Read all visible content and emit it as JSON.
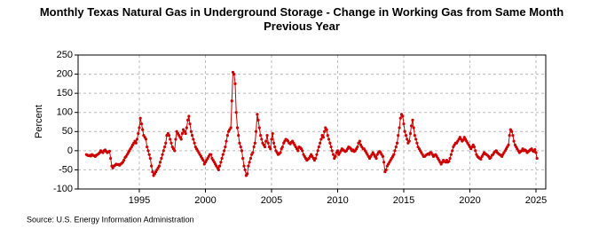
{
  "chart_data": {
    "type": "line",
    "title": "Monthly Texas Natural Gas in Underground Storage - Change in Working Gas from Same Month Previous Year",
    "y_label": "Percent",
    "source": "Source: U.S. Energy Information Administration",
    "xlim": [
      1990.37,
      2025.74
    ],
    "xticks": [
      1995,
      2000,
      2005,
      2010,
      2015,
      2020,
      2025
    ],
    "ylim": [
      -100,
      250
    ],
    "yticks": [
      -100,
      -50,
      0,
      50,
      100,
      150,
      200,
      250
    ],
    "grid": true,
    "x": [
      1991,
      1991.08,
      1991.17,
      1991.25,
      1991.33,
      1991.42,
      1991.5,
      1991.58,
      1991.67,
      1991.75,
      1991.83,
      1991.92,
      1992,
      1992.08,
      1992.17,
      1992.25,
      1992.33,
      1992.42,
      1992.5,
      1992.58,
      1992.67,
      1992.75,
      1992.83,
      1992.92,
      1993,
      1993.08,
      1993.17,
      1993.25,
      1993.33,
      1993.42,
      1993.5,
      1993.58,
      1993.67,
      1993.75,
      1993.83,
      1993.92,
      1994,
      1994.08,
      1994.17,
      1994.25,
      1994.33,
      1994.42,
      1994.5,
      1994.58,
      1994.67,
      1994.75,
      1994.83,
      1994.92,
      1995,
      1995.08,
      1995.17,
      1995.25,
      1995.33,
      1995.42,
      1995.5,
      1995.58,
      1995.67,
      1995.75,
      1995.83,
      1995.92,
      1996,
      1996.08,
      1996.17,
      1996.25,
      1996.33,
      1996.42,
      1996.5,
      1996.58,
      1996.67,
      1996.75,
      1996.83,
      1996.92,
      1997,
      1997.08,
      1997.17,
      1997.25,
      1997.33,
      1997.42,
      1997.5,
      1997.58,
      1997.67,
      1997.75,
      1997.83,
      1997.92,
      1998,
      1998.08,
      1998.17,
      1998.25,
      1998.33,
      1998.42,
      1998.5,
      1998.58,
      1998.67,
      1998.75,
      1998.83,
      1998.92,
      1999,
      1999.08,
      1999.17,
      1999.25,
      1999.33,
      1999.42,
      1999.5,
      1999.58,
      1999.67,
      1999.75,
      1999.83,
      1999.92,
      2000,
      2000.08,
      2000.17,
      2000.25,
      2000.33,
      2000.42,
      2000.5,
      2000.58,
      2000.67,
      2000.75,
      2000.83,
      2000.92,
      2001,
      2001.08,
      2001.17,
      2001.25,
      2001.33,
      2001.42,
      2001.5,
      2001.58,
      2001.67,
      2001.75,
      2001.83,
      2001.92,
      2002,
      2002.08,
      2002.17,
      2002.25,
      2002.33,
      2002.42,
      2002.5,
      2002.58,
      2002.67,
      2002.75,
      2002.83,
      2002.92,
      2003,
      2003.08,
      2003.17,
      2003.25,
      2003.33,
      2003.42,
      2003.5,
      2003.58,
      2003.67,
      2003.75,
      2003.83,
      2003.92,
      2004,
      2004.08,
      2004.17,
      2004.25,
      2004.33,
      2004.42,
      2004.5,
      2004.58,
      2004.67,
      2004.75,
      2004.83,
      2004.92,
      2005,
      2005.08,
      2005.17,
      2005.25,
      2005.33,
      2005.42,
      2005.5,
      2005.58,
      2005.67,
      2005.75,
      2005.83,
      2005.92,
      2006,
      2006.08,
      2006.17,
      2006.25,
      2006.33,
      2006.42,
      2006.5,
      2006.58,
      2006.67,
      2006.75,
      2006.83,
      2006.92,
      2007,
      2007.08,
      2007.17,
      2007.25,
      2007.33,
      2007.42,
      2007.5,
      2007.58,
      2007.67,
      2007.75,
      2007.83,
      2007.92,
      2008,
      2008.08,
      2008.17,
      2008.25,
      2008.33,
      2008.42,
      2008.5,
      2008.58,
      2008.67,
      2008.75,
      2008.83,
      2008.92,
      2009,
      2009.08,
      2009.17,
      2009.25,
      2009.33,
      2009.42,
      2009.5,
      2009.58,
      2009.67,
      2009.75,
      2009.83,
      2009.92,
      2010,
      2010.08,
      2010.17,
      2010.25,
      2010.33,
      2010.42,
      2010.5,
      2010.58,
      2010.67,
      2010.75,
      2010.83,
      2010.92,
      2011,
      2011.08,
      2011.17,
      2011.25,
      2011.33,
      2011.42,
      2011.5,
      2011.58,
      2011.67,
      2011.75,
      2011.83,
      2011.92,
      2012,
      2012.08,
      2012.17,
      2012.25,
      2012.33,
      2012.42,
      2012.5,
      2012.58,
      2012.67,
      2012.75,
      2012.83,
      2012.92,
      2013,
      2013.08,
      2013.17,
      2013.25,
      2013.33,
      2013.42,
      2013.5,
      2013.58,
      2013.67,
      2013.75,
      2013.83,
      2013.92,
      2014,
      2014.08,
      2014.17,
      2014.25,
      2014.33,
      2014.42,
      2014.5,
      2014.58,
      2014.67,
      2014.75,
      2014.83,
      2014.92,
      2015,
      2015.08,
      2015.17,
      2015.25,
      2015.33,
      2015.42,
      2015.5,
      2015.58,
      2015.67,
      2015.75,
      2015.83,
      2015.92,
      2016,
      2016.08,
      2016.17,
      2016.25,
      2016.33,
      2016.42,
      2016.5,
      2016.58,
      2016.67,
      2016.75,
      2016.83,
      2016.92,
      2017,
      2017.08,
      2017.17,
      2017.25,
      2017.33,
      2017.42,
      2017.5,
      2017.58,
      2017.67,
      2017.75,
      2017.83,
      2017.92,
      2018,
      2018.08,
      2018.17,
      2018.25,
      2018.33,
      2018.42,
      2018.5,
      2018.58,
      2018.67,
      2018.75,
      2018.83,
      2018.92,
      2019,
      2019.08,
      2019.17,
      2019.25,
      2019.33,
      2019.42,
      2019.5,
      2019.58,
      2019.67,
      2019.75,
      2019.83,
      2019.92,
      2020,
      2020.08,
      2020.17,
      2020.25,
      2020.33,
      2020.42,
      2020.5,
      2020.58,
      2020.67,
      2020.75,
      2020.83,
      2020.92,
      2021,
      2021.08,
      2021.17,
      2021.25,
      2021.33,
      2021.42,
      2021.5,
      2021.58,
      2021.67,
      2021.75,
      2021.83,
      2021.92,
      2022,
      2022.08,
      2022.17,
      2022.25,
      2022.33,
      2022.42,
      2022.5,
      2022.58,
      2022.67,
      2022.75,
      2022.83,
      2022.92,
      2023,
      2023.08,
      2023.17,
      2023.25,
      2023.33,
      2023.42,
      2023.5,
      2023.58,
      2023.67,
      2023.75,
      2023.83,
      2023.92,
      2024,
      2024.08,
      2024.17,
      2024.25,
      2024.33,
      2024.42,
      2024.5,
      2024.58,
      2024.67,
      2024.75,
      2024.83,
      2024.92,
      2025,
      2025.08
    ],
    "series": [
      {
        "color": "#cc0000",
        "values": [
          -10,
          -12,
          -13,
          -12,
          -14,
          -10,
          -12,
          -13,
          -15,
          -12,
          -10,
          -8,
          -5,
          0,
          -3,
          -5,
          0,
          2,
          -2,
          -5,
          -3,
          -1,
          -20,
          -40,
          -45,
          -40,
          -38,
          -35,
          -36,
          -36,
          -38,
          -35,
          -33,
          -30,
          -25,
          -18,
          -15,
          -10,
          -5,
          0,
          5,
          10,
          15,
          20,
          25,
          20,
          30,
          45,
          60,
          85,
          70,
          55,
          40,
          35,
          30,
          10,
          0,
          -10,
          -20,
          -40,
          -55,
          -65,
          -60,
          -55,
          -50,
          -45,
          -40,
          -30,
          -20,
          -10,
          0,
          10,
          20,
          40,
          45,
          40,
          30,
          20,
          10,
          5,
          0,
          30,
          50,
          45,
          40,
          35,
          30,
          45,
          55,
          50,
          45,
          60,
          80,
          90,
          70,
          50,
          40,
          30,
          20,
          10,
          5,
          0,
          -5,
          -10,
          -15,
          -20,
          -25,
          -35,
          -30,
          -25,
          -20,
          -15,
          -10,
          -10,
          -20,
          -25,
          -30,
          -35,
          -40,
          -45,
          -50,
          -40,
          -30,
          -20,
          -10,
          0,
          10,
          25,
          40,
          50,
          55,
          60,
          130,
          205,
          200,
          175,
          100,
          60,
          40,
          20,
          10,
          0,
          -20,
          -40,
          -50,
          -65,
          -60,
          -40,
          -30,
          -20,
          -10,
          -5,
          10,
          20,
          50,
          95,
          80,
          60,
          40,
          30,
          20,
          15,
          10,
          25,
          40,
          20,
          10,
          5,
          30,
          45,
          20,
          10,
          0,
          -5,
          -10,
          -8,
          -5,
          5,
          10,
          20,
          25,
          30,
          28,
          25,
          20,
          18,
          22,
          25,
          20,
          15,
          10,
          5,
          0,
          10,
          8,
          5,
          0,
          -10,
          -15,
          -20,
          -25,
          -22,
          -20,
          -15,
          -10,
          -15,
          -20,
          -25,
          -20,
          -10,
          0,
          10,
          20,
          30,
          40,
          35,
          50,
          60,
          55,
          40,
          30,
          20,
          10,
          0,
          -10,
          -20,
          -15,
          -5,
          0,
          -10,
          -5,
          0,
          5,
          2,
          0,
          -2,
          0,
          5,
          10,
          8,
          5,
          0,
          2,
          -2,
          0,
          5,
          10,
          20,
          25,
          15,
          10,
          5,
          5,
          0,
          -5,
          -10,
          -15,
          -20,
          -15,
          -10,
          -5,
          -10,
          -15,
          -20,
          -10,
          -5,
          -2,
          -5,
          -10,
          -15,
          -30,
          -55,
          -50,
          -40,
          -35,
          -30,
          -25,
          -20,
          -15,
          -10,
          0,
          10,
          20,
          40,
          60,
          85,
          95,
          90,
          70,
          50,
          40,
          30,
          20,
          25,
          45,
          65,
          80,
          60,
          40,
          30,
          20,
          10,
          5,
          0,
          -5,
          -10,
          -15,
          -15,
          -12,
          -10,
          -8,
          -10,
          -5,
          -5,
          -10,
          -15,
          -12,
          -10,
          -15,
          -20,
          -25,
          -30,
          -35,
          -30,
          -25,
          -28,
          -30,
          -25,
          -30,
          -28,
          -20,
          -10,
          0,
          10,
          15,
          20,
          20,
          25,
          30,
          35,
          30,
          25,
          28,
          35,
          30,
          25,
          20,
          15,
          10,
          5,
          10,
          15,
          10,
          0,
          -10,
          -15,
          -18,
          -20,
          -22,
          -15,
          -10,
          -5,
          -8,
          -10,
          -12,
          -15,
          -20,
          -18,
          -12,
          -10,
          -5,
          -2,
          0,
          -5,
          -8,
          -10,
          -12,
          -15,
          -10,
          -5,
          0,
          5,
          10,
          15,
          40,
          55,
          50,
          40,
          25,
          15,
          10,
          5,
          0,
          -5,
          -2,
          0,
          5,
          0,
          2,
          0,
          -5,
          -2,
          0,
          3,
          5,
          0,
          -2,
          3,
          -5,
          -20
        ]
      }
    ]
  }
}
